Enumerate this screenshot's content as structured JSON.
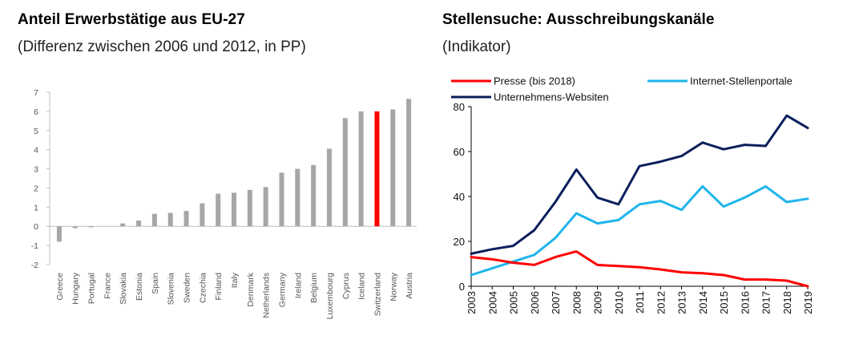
{
  "left": {
    "title": "Anteil Erwerbstätige aus EU-27",
    "subtitle": "(Differenz zwischen 2006 und 2012, in PP)"
  },
  "right": {
    "title": "Stellensuche: Ausschreibungskanäle",
    "subtitle": "(Indikator)"
  },
  "colors": {
    "bar": "#a6a6a6",
    "highlight": "#ff0000",
    "presse": "#ff0000",
    "internet": "#1fb5ea",
    "unternehmen": "#0b1f5c"
  },
  "chart_data": [
    {
      "type": "bar",
      "title": "Anteil Erwerbstätige aus EU-27",
      "subtitle": "(Differenz zwischen 2006 und 2012, in PP)",
      "categories": [
        "Greece",
        "Hungary",
        "Portugal",
        "France",
        "Slovakia",
        "Estonia",
        "Spain",
        "Slovenia",
        "Sweden",
        "Czechia",
        "Finland",
        "Italy",
        "Denmark",
        "Netherlands",
        "Germany",
        "Ireland",
        "Belgium",
        "Luxembourg",
        "Cyprus",
        "Iceland",
        "Switzerland",
        "Norway",
        "Austria"
      ],
      "values": [
        -0.8,
        -0.1,
        -0.05,
        0.0,
        0.15,
        0.3,
        0.65,
        0.7,
        0.8,
        1.2,
        1.7,
        1.75,
        1.9,
        2.05,
        2.8,
        3.0,
        3.2,
        4.05,
        5.65,
        6.0,
        6.0,
        6.1,
        6.65
      ],
      "highlight": "Switzerland",
      "yticks": [
        -2,
        -1,
        0,
        1,
        2,
        3,
        4,
        5,
        6,
        7
      ],
      "ylim": [
        -2,
        7
      ],
      "xlabel": "",
      "ylabel": ""
    },
    {
      "type": "line",
      "title": "Stellensuche: Ausschreibungskanäle",
      "subtitle": "(Indikator)",
      "x": [
        "2003",
        "2004",
        "2005",
        "2006",
        "2007",
        "2008",
        "2009",
        "2010",
        "2011",
        "2012",
        "2013",
        "2014",
        "2015",
        "2016",
        "2017",
        "2018",
        "2019"
      ],
      "series": [
        {
          "name": "Presse (bis 2018)",
          "color_key": "presse",
          "values": [
            13,
            12,
            10.5,
            9.5,
            13,
            15.5,
            9.5,
            9,
            8.5,
            7.5,
            6.2,
            5.8,
            5,
            3,
            3,
            2.5,
            0
          ]
        },
        {
          "name": "Internet-Stellenportale",
          "color_key": "internet",
          "values": [
            5,
            8,
            11,
            14,
            21.5,
            32.5,
            28,
            29.5,
            36.5,
            38,
            34,
            44.5,
            35.5,
            39.5,
            44.5,
            37.5,
            39
          ]
        },
        {
          "name": "Unternehmens-Websiten",
          "color_key": "unternehmen",
          "values": [
            14.5,
            16.5,
            18,
            25,
            37.5,
            52,
            39.5,
            36.5,
            53.5,
            55.5,
            58,
            64,
            61,
            63,
            62.5,
            76,
            70.5
          ]
        }
      ],
      "yticks": [
        0,
        20,
        40,
        60,
        80
      ],
      "ylim": [
        0,
        80
      ],
      "xlabel": "",
      "ylabel": ""
    }
  ]
}
